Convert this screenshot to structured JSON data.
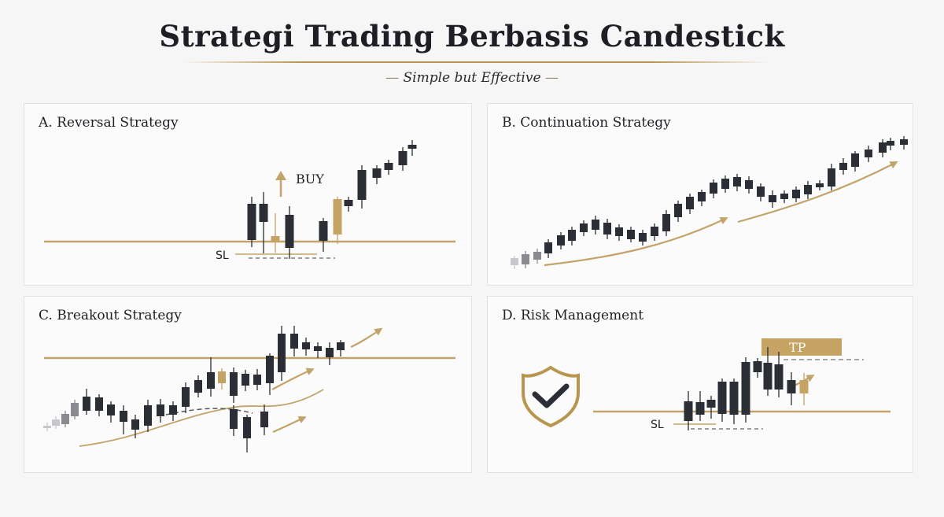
{
  "header": {
    "title": "Strategi Trading Berbasis Candestick",
    "subtitle": "Simple but Effective"
  },
  "colors": {
    "candle_dark": "#2b2e35",
    "candle_gold": "#c4a363",
    "line_gold": "#c2a46a",
    "background": "#f7f6f7"
  },
  "panels": {
    "a": {
      "title": "A. Reversal Strategy",
      "buy_label": "BUY",
      "sl_label": "SL"
    },
    "b": {
      "title": "B. Continuation Strategy"
    },
    "c": {
      "title": "C. Breakout Strategy"
    },
    "d": {
      "title": "D. Risk Management",
      "tp_label": "TP",
      "sl_label": "SL",
      "icon": "shield-check-icon"
    }
  }
}
